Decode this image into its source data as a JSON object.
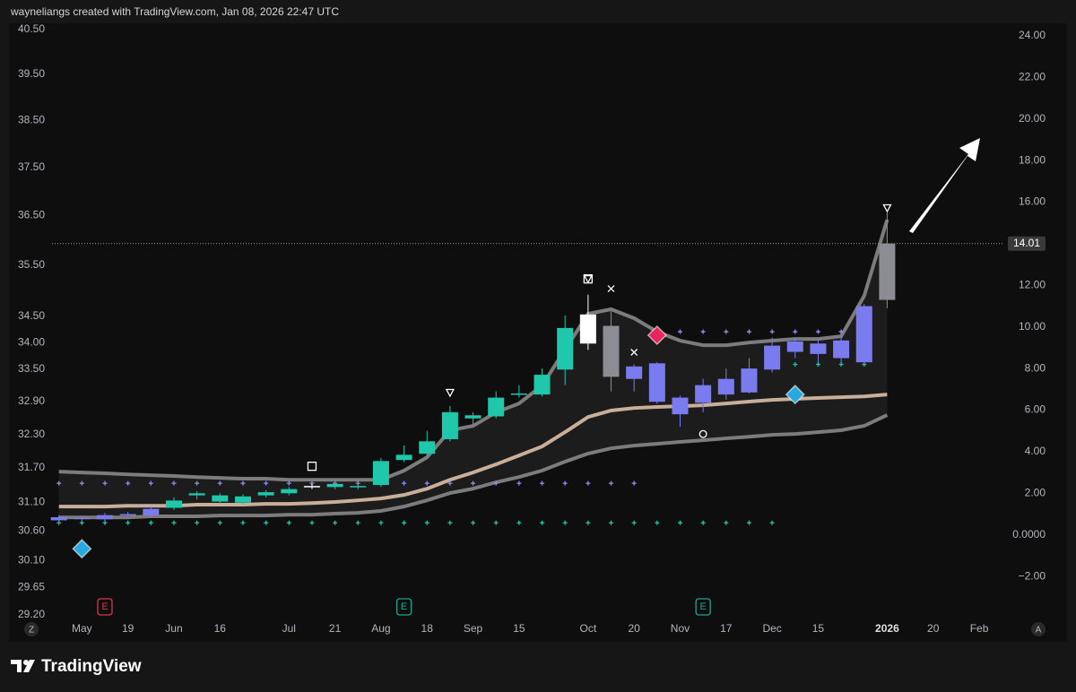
{
  "header": {
    "text": "wayneliangs created with TradingView.com, Jan 08, 2026 22:47 UTC"
  },
  "footer": {
    "logo": "TradingView",
    "left_button": "Z",
    "right_button": "A"
  },
  "chart_data": {
    "type": "candlestick",
    "x": [
      0,
      1,
      2,
      3,
      4,
      5,
      6,
      7,
      8,
      9,
      10,
      11,
      12,
      13,
      14,
      15,
      16,
      17,
      18,
      19,
      20,
      21,
      22,
      23,
      24,
      25,
      26,
      27,
      28,
      29,
      30,
      31,
      32,
      33,
      34,
      35,
      36
    ],
    "open": [
      0.7,
      0.8,
      0.75,
      0.95,
      0.95,
      1.3,
      1.9,
      1.6,
      1.55,
      1.9,
      2.0,
      2.3,
      2.3,
      2.3,
      2.4,
      3.6,
      3.9,
      4.6,
      5.6,
      5.7,
      6.75,
      6.75,
      7.95,
      9.2,
      10.05,
      8.1,
      8.25,
      6.6,
      6.35,
      6.75,
      6.85,
      7.95,
      8.8,
      8.7,
      8.5,
      8.3,
      11.3
    ],
    "high": [
      0.95,
      0.9,
      1.05,
      1.1,
      1.35,
      1.8,
      2.1,
      2.0,
      1.95,
      2.15,
      2.3,
      2.45,
      2.55,
      2.5,
      3.7,
      4.3,
      5.0,
      6.2,
      5.9,
      6.9,
      7.2,
      8.0,
      10.55,
      11.55,
      10.75,
      8.2,
      8.3,
      6.7,
      7.5,
      8.0,
      8.5,
      9.5,
      9.5,
      9.4,
      9.6,
      11.1,
      15.5
    ],
    "low": [
      0.6,
      0.7,
      0.65,
      0.85,
      0.85,
      1.2,
      1.7,
      1.5,
      1.45,
      1.8,
      1.9,
      2.2,
      2.2,
      2.2,
      2.3,
      3.5,
      3.8,
      4.5,
      5.3,
      5.6,
      6.6,
      6.65,
      7.2,
      8.9,
      6.9,
      6.9,
      6.3,
      5.2,
      5.9,
      6.5,
      6.8,
      7.8,
      8.5,
      8.3,
      8.3,
      8.1,
      10.9
    ],
    "close": [
      0.85,
      0.82,
      0.95,
      1.0,
      1.25,
      1.65,
      2.0,
      1.9,
      1.85,
      2.05,
      2.2,
      2.35,
      2.45,
      2.35,
      3.55,
      3.85,
      4.5,
      5.9,
      5.75,
      6.6,
      6.8,
      7.7,
      9.95,
      10.6,
      7.6,
      7.5,
      6.4,
      5.8,
      7.2,
      7.5,
      8.0,
      9.1,
      9.3,
      9.2,
      9.35,
      11.0,
      14.01
    ],
    "colors": [
      "#7b7bf0",
      "#7b7bf0",
      "#7b7bf0",
      "#7b7bf0",
      "#7b7bf0",
      "#1fc7ab",
      "#1fc7ab",
      "#1fc7ab",
      "#1fc7ab",
      "#1fc7ab",
      "#1fc7ab",
      "#ffffff",
      "#1fc7ab",
      "#1fc7ab",
      "#1fc7ab",
      "#1fc7ab",
      "#1fc7ab",
      "#1fc7ab",
      "#1fc7ab",
      "#1fc7ab",
      "#1fc7ab",
      "#1fc7ab",
      "#1fc7ab",
      "#ffffff",
      "#8c8c94",
      "#7b7bf0",
      "#7b7bf0",
      "#7b7bf0",
      "#7b7bf0",
      "#7b7bf0",
      "#7b7bf0",
      "#7b7bf0",
      "#7b7bf0",
      "#7b7bf0",
      "#7b7bf0",
      "#7b7bf0",
      "#8c8c94"
    ],
    "axis": "y2",
    "lines": [
      {
        "color": "#8e8e8e",
        "width": 4,
        "values": [
          3.04,
          3.0,
          2.96,
          2.91,
          2.87,
          2.83,
          2.78,
          2.74,
          2.7,
          2.7,
          2.65,
          2.65,
          2.65,
          2.65,
          2.65,
          3.09,
          3.73,
          5.03,
          5.24,
          5.89,
          6.32,
          7.18,
          8.91,
          10.63,
          10.85,
          10.42,
          9.77,
          9.34,
          9.12,
          9.12,
          9.25,
          9.34,
          9.42,
          9.42,
          9.55,
          11.49,
          15.16
        ]
      },
      {
        "color": "#e8c9b0",
        "width": 4,
        "values": [
          1.36,
          1.36,
          1.36,
          1.4,
          1.4,
          1.4,
          1.45,
          1.45,
          1.45,
          1.49,
          1.49,
          1.53,
          1.58,
          1.66,
          1.75,
          1.92,
          2.22,
          2.65,
          3.0,
          3.39,
          3.82,
          4.25,
          4.94,
          5.67,
          5.98,
          6.1,
          6.15,
          6.19,
          6.23,
          6.32,
          6.41,
          6.49,
          6.54,
          6.58,
          6.62,
          6.66,
          6.75
        ]
      },
      {
        "color": "#8e8e8e",
        "width": 4,
        "values": [
          0.84,
          0.84,
          0.84,
          0.84,
          0.89,
          0.89,
          0.89,
          0.93,
          0.93,
          0.93,
          0.97,
          0.97,
          1.02,
          1.06,
          1.15,
          1.36,
          1.66,
          2.01,
          2.22,
          2.53,
          2.78,
          3.09,
          3.52,
          3.91,
          4.16,
          4.29,
          4.38,
          4.47,
          4.55,
          4.64,
          4.72,
          4.81,
          4.85,
          4.94,
          5.03,
          5.24,
          5.76
        ]
      }
    ],
    "plus_rows": [
      {
        "color": "#8f8ff7",
        "from": 0,
        "to": 25,
        "value": 2.48
      },
      {
        "color": "#8f8ff7",
        "from": 27,
        "to": 35,
        "value": 9.77
      },
      {
        "color": "#1fc7ab",
        "from": 0,
        "to": 31,
        "value": 0.58
      },
      {
        "color": "#1fc7ab",
        "from": 32,
        "to": 35,
        "value": 8.2
      }
    ],
    "markers": [
      {
        "symbol": "diamond",
        "x": 1,
        "value": -0.67,
        "color": "#29a8e0"
      },
      {
        "symbol": "square",
        "x": 11,
        "value": 3.3,
        "color": "#ffffff"
      },
      {
        "symbol": "triangle",
        "x": 17,
        "value": 6.84,
        "color": "#ffffff"
      },
      {
        "symbol": "square",
        "x": 23,
        "value": 12.31,
        "color": "#ffffff"
      },
      {
        "symbol": "triangle",
        "x": 23,
        "value": 12.31,
        "color": "#ffffff"
      },
      {
        "symbol": "cross",
        "x": 24,
        "value": 11.84,
        "color": "#ffffff"
      },
      {
        "symbol": "cross",
        "x": 25,
        "value": 8.78,
        "color": "#ffffff"
      },
      {
        "symbol": "diamond",
        "x": 26,
        "value": 9.6,
        "color": "#e8245e"
      },
      {
        "symbol": "circle",
        "x": 28,
        "value": 4.85,
        "color": "#ffffff"
      },
      {
        "symbol": "diamond",
        "x": 32,
        "value": 6.75,
        "color": "#29a8e0"
      },
      {
        "symbol": "triangle",
        "x": 36,
        "value": 15.72,
        "color": "#ffffff"
      }
    ],
    "badges": [
      {
        "x": 2,
        "text": "E",
        "color": "#d8394a"
      },
      {
        "x": 15,
        "text": "E",
        "color": "#1fa58f"
      },
      {
        "x": 28,
        "text": "E",
        "color": "#1fa58f"
      }
    ],
    "last_price": 14.01,
    "xlim": [
      -0.3,
      40.7
    ],
    "xticks": [
      {
        "value": 1,
        "label": "May"
      },
      {
        "value": 3,
        "label": "19"
      },
      {
        "value": 5,
        "label": "Jun"
      },
      {
        "value": 7,
        "label": "16"
      },
      {
        "value": 10,
        "label": "Jul"
      },
      {
        "value": 12,
        "label": "21"
      },
      {
        "value": 14,
        "label": "Aug"
      },
      {
        "value": 16,
        "label": "18"
      },
      {
        "value": 18,
        "label": "Sep"
      },
      {
        "value": 20,
        "label": "15"
      },
      {
        "value": 23,
        "label": "Oct"
      },
      {
        "value": 25,
        "label": "20"
      },
      {
        "value": 27,
        "label": "Nov"
      },
      {
        "value": 29,
        "label": "17"
      },
      {
        "value": 31,
        "label": "Dec"
      },
      {
        "value": 33,
        "label": "15"
      },
      {
        "value": 36,
        "label": "2026"
      },
      {
        "value": 38,
        "label": "20"
      },
      {
        "value": 40,
        "label": "Feb"
      }
    ],
    "ylim": [
      29.2,
      40.5
    ],
    "log_scale": true,
    "yticks": [
      {
        "value": 40.5,
        "label": "40.50"
      },
      {
        "value": 39.5,
        "label": "39.50"
      },
      {
        "value": 38.5,
        "label": "38.50"
      },
      {
        "value": 37.5,
        "label": "37.50"
      },
      {
        "value": 36.5,
        "label": "36.50"
      },
      {
        "value": 35.5,
        "label": "35.50"
      },
      {
        "value": 34.5,
        "label": "34.50"
      },
      {
        "value": 34,
        "label": "34.00"
      },
      {
        "value": 33.5,
        "label": "33.50"
      },
      {
        "value": 32.9,
        "label": "32.90"
      },
      {
        "value": 32.3,
        "label": "32.30"
      },
      {
        "value": 31.7,
        "label": "31.70"
      },
      {
        "value": 31.1,
        "label": "31.10"
      },
      {
        "value": 30.6,
        "label": "30.60"
      },
      {
        "value": 30.1,
        "label": "30.10"
      },
      {
        "value": 29.65,
        "label": "29.65"
      },
      {
        "value": 29.2,
        "label": "29.20"
      }
    ],
    "y2lim": [
      -3.85,
      24.3
    ],
    "y2ticks": [
      {
        "value": 24,
        "label": "24.00"
      },
      {
        "value": 22,
        "label": "22.00"
      },
      {
        "value": 20,
        "label": "20.00"
      },
      {
        "value": 18,
        "label": "18.00"
      },
      {
        "value": 16,
        "label": "16.00"
      },
      {
        "value": 14,
        "label": "14.00"
      },
      {
        "value": 12,
        "label": "12.00"
      },
      {
        "value": 10,
        "label": "10.00"
      },
      {
        "value": 8,
        "label": "8.00"
      },
      {
        "value": 6,
        "label": "6.00"
      },
      {
        "value": 4,
        "label": "4.00"
      },
      {
        "value": 2,
        "label": "2.00"
      },
      {
        "value": 0,
        "label": "0.0000"
      },
      {
        "value": -2,
        "label": "−2.00"
      }
    ]
  }
}
